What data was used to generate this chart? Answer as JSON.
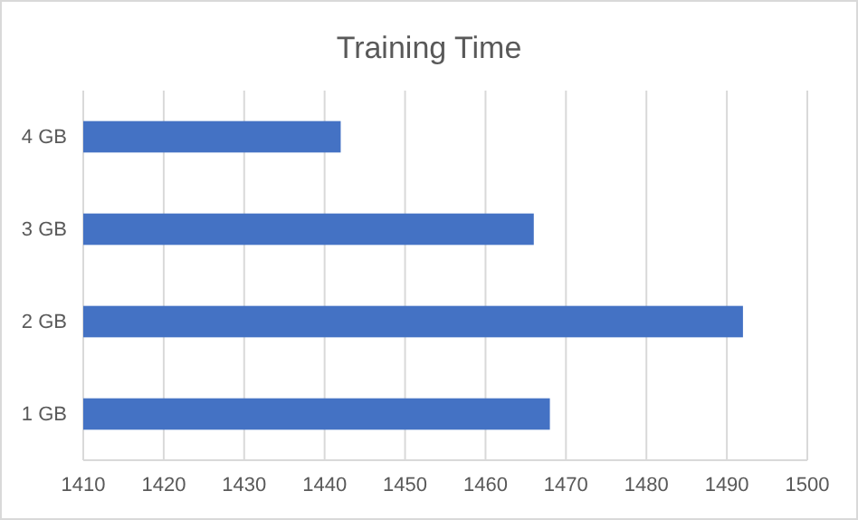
{
  "chart_data": {
    "type": "bar",
    "title": "Training Time",
    "orientation": "horizontal",
    "categories": [
      "4 GB",
      "3 GB",
      "2 GB",
      "1 GB"
    ],
    "values": [
      1442,
      1466,
      1492,
      1468
    ],
    "color": "#4472c4",
    "xlim": [
      1410,
      1500
    ],
    "xticks": [
      1410,
      1420,
      1430,
      1440,
      1450,
      1460,
      1470,
      1480,
      1490,
      1500
    ],
    "grid": "x"
  }
}
